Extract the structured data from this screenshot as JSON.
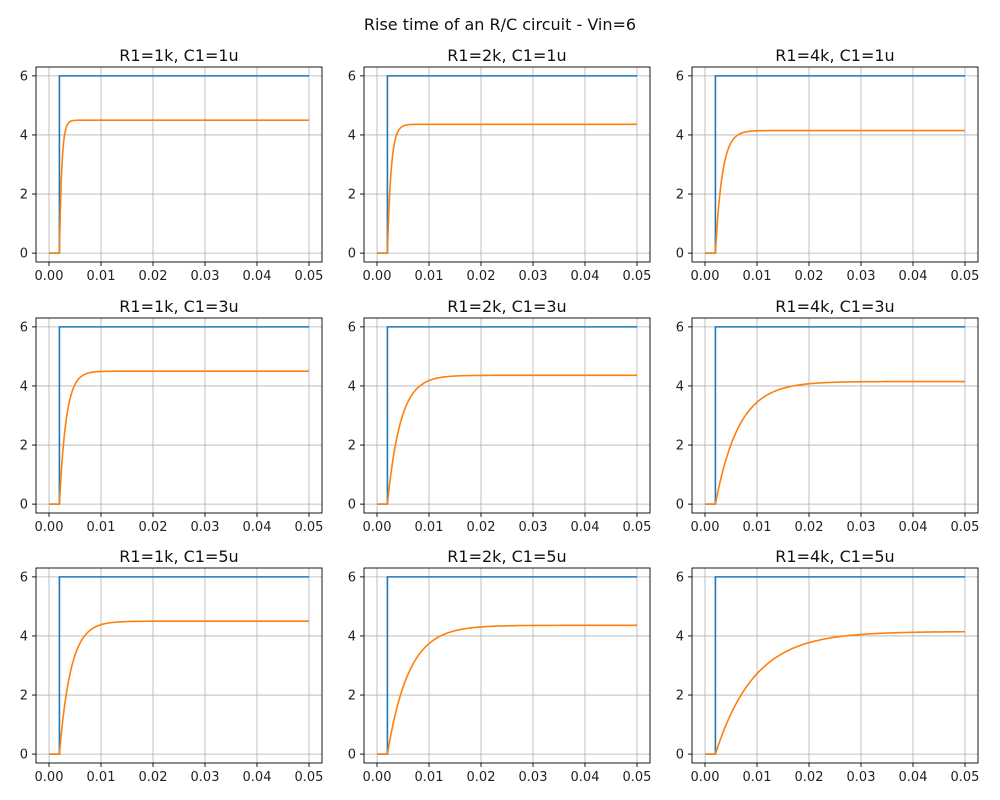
{
  "figure": {
    "suptitle": "Rise time of an R/C circuit - Vin=6"
  },
  "colors": {
    "input": "#1f77b4",
    "output": "#ff7f0e",
    "grid": "#b0b0b0",
    "axes": "#000000"
  },
  "chart_data": [
    {
      "type": "line",
      "title": "R1=1k, C1=1u",
      "R_kohm": 1,
      "C_uF": 1,
      "xlim": [
        0,
        0.05
      ],
      "ylim": [
        0,
        6
      ],
      "x_ticks": [
        "0.00",
        "0.01",
        "0.02",
        "0.03",
        "0.04",
        "0.05"
      ],
      "y_ticks": [
        "0",
        "2",
        "4",
        "6"
      ],
      "grid": true,
      "step_time": 0.002,
      "vin": 6,
      "vout_final": 4.5,
      "tau": 0.00045,
      "series": [
        {
          "values": [
            [
              0,
              0
            ],
            [
              0.002,
              0
            ],
            [
              0.002,
              6
            ],
            [
              0.05,
              6
            ]
          ]
        },
        {
          "values": [
            [
              0,
              0
            ],
            [
              0.002,
              0
            ],
            [
              0.003,
              3.9
            ],
            [
              0.0035,
              4.4
            ],
            [
              0.005,
              4.5
            ],
            [
              0.05,
              4.5
            ]
          ]
        }
      ]
    },
    {
      "type": "line",
      "title": "R1=2k, C1=1u",
      "R_kohm": 2,
      "C_uF": 1,
      "xlim": [
        0,
        0.05
      ],
      "ylim": [
        0,
        6
      ],
      "x_ticks": [
        "0.00",
        "0.01",
        "0.02",
        "0.03",
        "0.04",
        "0.05"
      ],
      "y_ticks": [
        "0",
        "2",
        "4",
        "6"
      ],
      "grid": true,
      "step_time": 0.002,
      "vin": 6,
      "vout_final": 4.36,
      "tau": 0.0007,
      "series": [
        {
          "values": [
            [
              0,
              0
            ],
            [
              0.002,
              0
            ],
            [
              0.002,
              6
            ],
            [
              0.05,
              6
            ]
          ]
        },
        {
          "values": [
            [
              0,
              0
            ],
            [
              0.002,
              0
            ],
            [
              0.003,
              3.3
            ],
            [
              0.004,
              4.2
            ],
            [
              0.006,
              4.36
            ],
            [
              0.05,
              4.36
            ]
          ]
        }
      ]
    },
    {
      "type": "line",
      "title": "R1=4k, C1=1u",
      "R_kohm": 4,
      "C_uF": 1,
      "xlim": [
        0,
        0.05
      ],
      "ylim": [
        0,
        6
      ],
      "x_ticks": [
        "0.00",
        "0.01",
        "0.02",
        "0.03",
        "0.04",
        "0.05"
      ],
      "y_ticks": [
        "0",
        "2",
        "4",
        "6"
      ],
      "grid": true,
      "step_time": 0.002,
      "vin": 6,
      "vout_final": 4.15,
      "tau": 0.0013,
      "series": [
        {
          "values": [
            [
              0,
              0
            ],
            [
              0.002,
              0
            ],
            [
              0.004,
              2.9
            ],
            [
              0.006,
              3.9
            ],
            [
              0.009,
              4.15
            ],
            [
              0.05,
              4.15
            ]
          ]
        }
      ]
    },
    {
      "type": "line",
      "title": "R1=1k, C1=3u",
      "R_kohm": 1,
      "C_uF": 3,
      "xlim": [
        0,
        0.05
      ],
      "ylim": [
        0,
        6
      ],
      "x_ticks": [
        "0.00",
        "0.01",
        "0.02",
        "0.03",
        "0.04",
        "0.05"
      ],
      "y_ticks": [
        "0",
        "2",
        "4",
        "6"
      ],
      "grid": true,
      "step_time": 0.002,
      "vin": 6,
      "vout_final": 4.5,
      "tau": 0.0013,
      "series": [
        {
          "values": [
            [
              0,
              0
            ],
            [
              0.002,
              0
            ],
            [
              0.002,
              6
            ],
            [
              0.05,
              6
            ]
          ]
        },
        {
          "values": [
            [
              0,
              0
            ],
            [
              0.002,
              0
            ],
            [
              0.004,
              3.3
            ],
            [
              0.006,
              4.3
            ],
            [
              0.008,
              4.5
            ],
            [
              0.05,
              4.5
            ]
          ]
        }
      ]
    },
    {
      "type": "line",
      "title": "R1=2k, C1=3u",
      "R_kohm": 2,
      "C_uF": 3,
      "xlim": [
        0,
        0.05
      ],
      "ylim": [
        0,
        6
      ],
      "x_ticks": [
        "0.00",
        "0.01",
        "0.02",
        "0.03",
        "0.04",
        "0.05"
      ],
      "y_ticks": [
        "0",
        "2",
        "4",
        "6"
      ],
      "grid": true,
      "step_time": 0.002,
      "vin": 6,
      "vout_final": 4.36,
      "tau": 0.0025,
      "series": [
        {
          "values": [
            [
              0,
              0
            ],
            [
              0.002,
              0
            ],
            [
              0.002,
              6
            ],
            [
              0.05,
              6
            ]
          ]
        },
        {
          "values": [
            [
              0,
              0
            ],
            [
              0.002,
              0
            ],
            [
              0.006,
              3.3
            ],
            [
              0.01,
              4.2
            ],
            [
              0.014,
              4.36
            ],
            [
              0.05,
              4.36
            ]
          ]
        }
      ]
    },
    {
      "type": "line",
      "title": "R1=4k, C1=3u",
      "R_kohm": 4,
      "C_uF": 3,
      "xlim": [
        0,
        0.05
      ],
      "ylim": [
        0,
        6
      ],
      "x_ticks": [
        "0.00",
        "0.01",
        "0.02",
        "0.03",
        "0.04",
        "0.05"
      ],
      "y_ticks": [
        "0",
        "2",
        "4",
        "6"
      ],
      "grid": true,
      "step_time": 0.002,
      "vin": 6,
      "vout_final": 4.15,
      "tau": 0.0045,
      "series": [
        {
          "values": [
            [
              0,
              0
            ],
            [
              0.002,
              0
            ],
            [
              0.002,
              6
            ],
            [
              0.05,
              6
            ]
          ]
        },
        {
          "values": [
            [
              0,
              0
            ],
            [
              0.002,
              0
            ],
            [
              0.01,
              3.0
            ],
            [
              0.015,
              3.8
            ],
            [
              0.02,
              4.1
            ],
            [
              0.025,
              4.15
            ],
            [
              0.05,
              4.15
            ]
          ]
        }
      ]
    },
    {
      "type": "line",
      "title": "R1=1k, C1=5u",
      "R_kohm": 1,
      "C_uF": 5,
      "xlim": [
        0,
        0.05
      ],
      "ylim": [
        0,
        6
      ],
      "x_ticks": [
        "0.00",
        "0.01",
        "0.02",
        "0.03",
        "0.04",
        "0.05"
      ],
      "y_ticks": [
        "0",
        "2",
        "4",
        "6"
      ],
      "grid": true,
      "step_time": 0.002,
      "vin": 6,
      "vout_final": 4.5,
      "tau": 0.0022,
      "series": [
        {
          "values": [
            [
              0,
              0
            ],
            [
              0.002,
              0
            ],
            [
              0.002,
              6
            ],
            [
              0.05,
              6
            ]
          ]
        },
        {
          "values": [
            [
              0,
              0
            ],
            [
              0.002,
              0
            ],
            [
              0.006,
              3.2
            ],
            [
              0.009,
              4.3
            ],
            [
              0.011,
              4.5
            ],
            [
              0.05,
              4.5
            ]
          ]
        }
      ]
    },
    {
      "type": "line",
      "title": "R1=2k, C1=5u",
      "R_kohm": 2,
      "C_uF": 5,
      "xlim": [
        0,
        0.05
      ],
      "ylim": [
        0,
        6
      ],
      "x_ticks": [
        "0.00",
        "0.01",
        "0.02",
        "0.03",
        "0.04",
        "0.05"
      ],
      "y_ticks": [
        "0",
        "2",
        "4",
        "6"
      ],
      "grid": true,
      "step_time": 0.002,
      "vin": 6,
      "vout_final": 4.36,
      "tau": 0.0041,
      "series": [
        {
          "values": [
            [
              0,
              0
            ],
            [
              0.002,
              0
            ],
            [
              0.002,
              6
            ],
            [
              0.05,
              6
            ]
          ]
        },
        {
          "values": [
            [
              0,
              0
            ],
            [
              0.002,
              0
            ],
            [
              0.01,
              3.3
            ],
            [
              0.015,
              4.1
            ],
            [
              0.02,
              4.34
            ],
            [
              0.05,
              4.36
            ]
          ]
        }
      ]
    },
    {
      "type": "line",
      "title": "R1=4k, C1=5u",
      "R_kohm": 4,
      "C_uF": 5,
      "xlim": [
        0,
        0.05
      ],
      "ylim": [
        0,
        6
      ],
      "x_ticks": [
        "0.00",
        "0.01",
        "0.02",
        "0.03",
        "0.04",
        "0.05"
      ],
      "y_ticks": [
        "0",
        "2",
        "4",
        "6"
      ],
      "grid": true,
      "step_time": 0.002,
      "vin": 6,
      "vout_final": 4.15,
      "tau": 0.0075,
      "series": [
        {
          "values": [
            [
              0,
              0
            ],
            [
              0.002,
              0
            ],
            [
              0.002,
              6
            ],
            [
              0.05,
              6
            ]
          ]
        },
        {
          "values": [
            [
              0,
              0
            ],
            [
              0.002,
              0
            ],
            [
              0.01,
              2.0
            ],
            [
              0.02,
              3.4
            ],
            [
              0.03,
              4.0
            ],
            [
              0.04,
              4.13
            ],
            [
              0.05,
              4.15
            ]
          ]
        }
      ]
    }
  ]
}
